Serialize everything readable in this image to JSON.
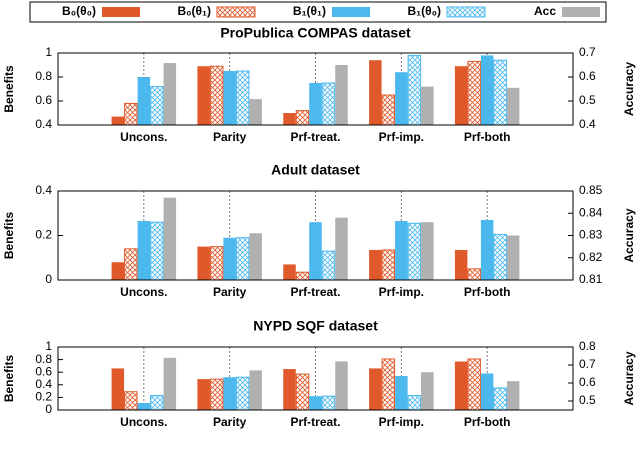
{
  "chart_data": [
    {
      "type": "bar",
      "title": "ProPublica COMPAS dataset",
      "y_label": "Benefits",
      "y2_label": "Accuracy",
      "categories": [
        "Uncons.",
        "Parity",
        "Prf-treat.",
        "Prf-imp.",
        "Prf-both"
      ],
      "ylim": [
        0.4,
        1
      ],
      "yticks": [
        0.4,
        0.6,
        0.8,
        1
      ],
      "y2lim": [
        0.4,
        0.7
      ],
      "y2ticks": [
        0.4,
        0.5,
        0.6,
        0.7
      ],
      "grid": true,
      "series": [
        {
          "name": "B₀(θ₀)",
          "color": "#e0592a",
          "pattern": "solid",
          "values": [
            0.47,
            0.89,
            0.5,
            0.94,
            0.89
          ]
        },
        {
          "name": "B₀(θ₁)",
          "color": "#e0592a",
          "pattern": "hatch",
          "values": [
            0.58,
            0.89,
            0.52,
            0.65,
            0.93
          ]
        },
        {
          "name": "B₁(θ₁)",
          "color": "#4cb9ee",
          "pattern": "solid",
          "values": [
            0.8,
            0.85,
            0.75,
            0.84,
            0.98
          ]
        },
        {
          "name": "B₁(θ₀)",
          "color": "#4cb9ee",
          "pattern": "hatch",
          "values": [
            0.72,
            0.85,
            0.75,
            0.98,
            0.94
          ]
        },
        {
          "name": "Acc",
          "color": "#b0b0b0",
          "pattern": "solid",
          "axis": "y2",
          "values": [
            0.658,
            0.508,
            0.65,
            0.56,
            0.555
          ]
        }
      ]
    },
    {
      "type": "bar",
      "title": "Adult dataset",
      "y_label": "Benefits",
      "y2_label": "Accuracy",
      "categories": [
        "Uncons.",
        "Parity",
        "Prf-treat.",
        "Prf-imp.",
        "Prf-both"
      ],
      "ylim": [
        0,
        0.4
      ],
      "yticks": [
        0,
        0.2,
        0.4
      ],
      "y2lim": [
        0.81,
        0.85
      ],
      "y2ticks": [
        0.81,
        0.82,
        0.83,
        0.84,
        0.85
      ],
      "grid": true,
      "series": [
        {
          "values": [
            0.08,
            0.15,
            0.07,
            0.135,
            0.135
          ]
        },
        {
          "values": [
            0.14,
            0.15,
            0.035,
            0.135,
            0.05
          ]
        },
        {
          "values": [
            0.265,
            0.19,
            0.26,
            0.265,
            0.27
          ]
        },
        {
          "values": [
            0.26,
            0.19,
            0.13,
            0.255,
            0.205
          ]
        },
        {
          "axis": "y2",
          "values": [
            0.847,
            0.831,
            0.838,
            0.836,
            0.83
          ]
        }
      ]
    },
    {
      "type": "bar",
      "title": "NYPD SQF dataset",
      "y_label": "Benefits",
      "y2_label": "Accuracy",
      "categories": [
        "Uncons.",
        "Parity",
        "Prf-treat.",
        "Prf-imp.",
        "Prf-both"
      ],
      "ylim": [
        0,
        1
      ],
      "yticks": [
        0,
        0.2,
        0.4,
        0.6,
        0.8,
        1
      ],
      "y2lim": [
        0.45,
        0.8
      ],
      "y2ticks": [
        0.5,
        0.6,
        0.7,
        0.8
      ],
      "grid": true,
      "series": [
        {
          "values": [
            0.66,
            0.49,
            0.65,
            0.66,
            0.77
          ]
        },
        {
          "values": [
            0.29,
            0.49,
            0.57,
            0.81,
            0.81
          ]
        },
        {
          "values": [
            0.11,
            0.52,
            0.22,
            0.54,
            0.58
          ]
        },
        {
          "values": [
            0.23,
            0.52,
            0.22,
            0.23,
            0.35
          ]
        },
        {
          "axis": "y2",
          "values": [
            0.74,
            0.67,
            0.72,
            0.66,
            0.61
          ]
        }
      ]
    }
  ]
}
